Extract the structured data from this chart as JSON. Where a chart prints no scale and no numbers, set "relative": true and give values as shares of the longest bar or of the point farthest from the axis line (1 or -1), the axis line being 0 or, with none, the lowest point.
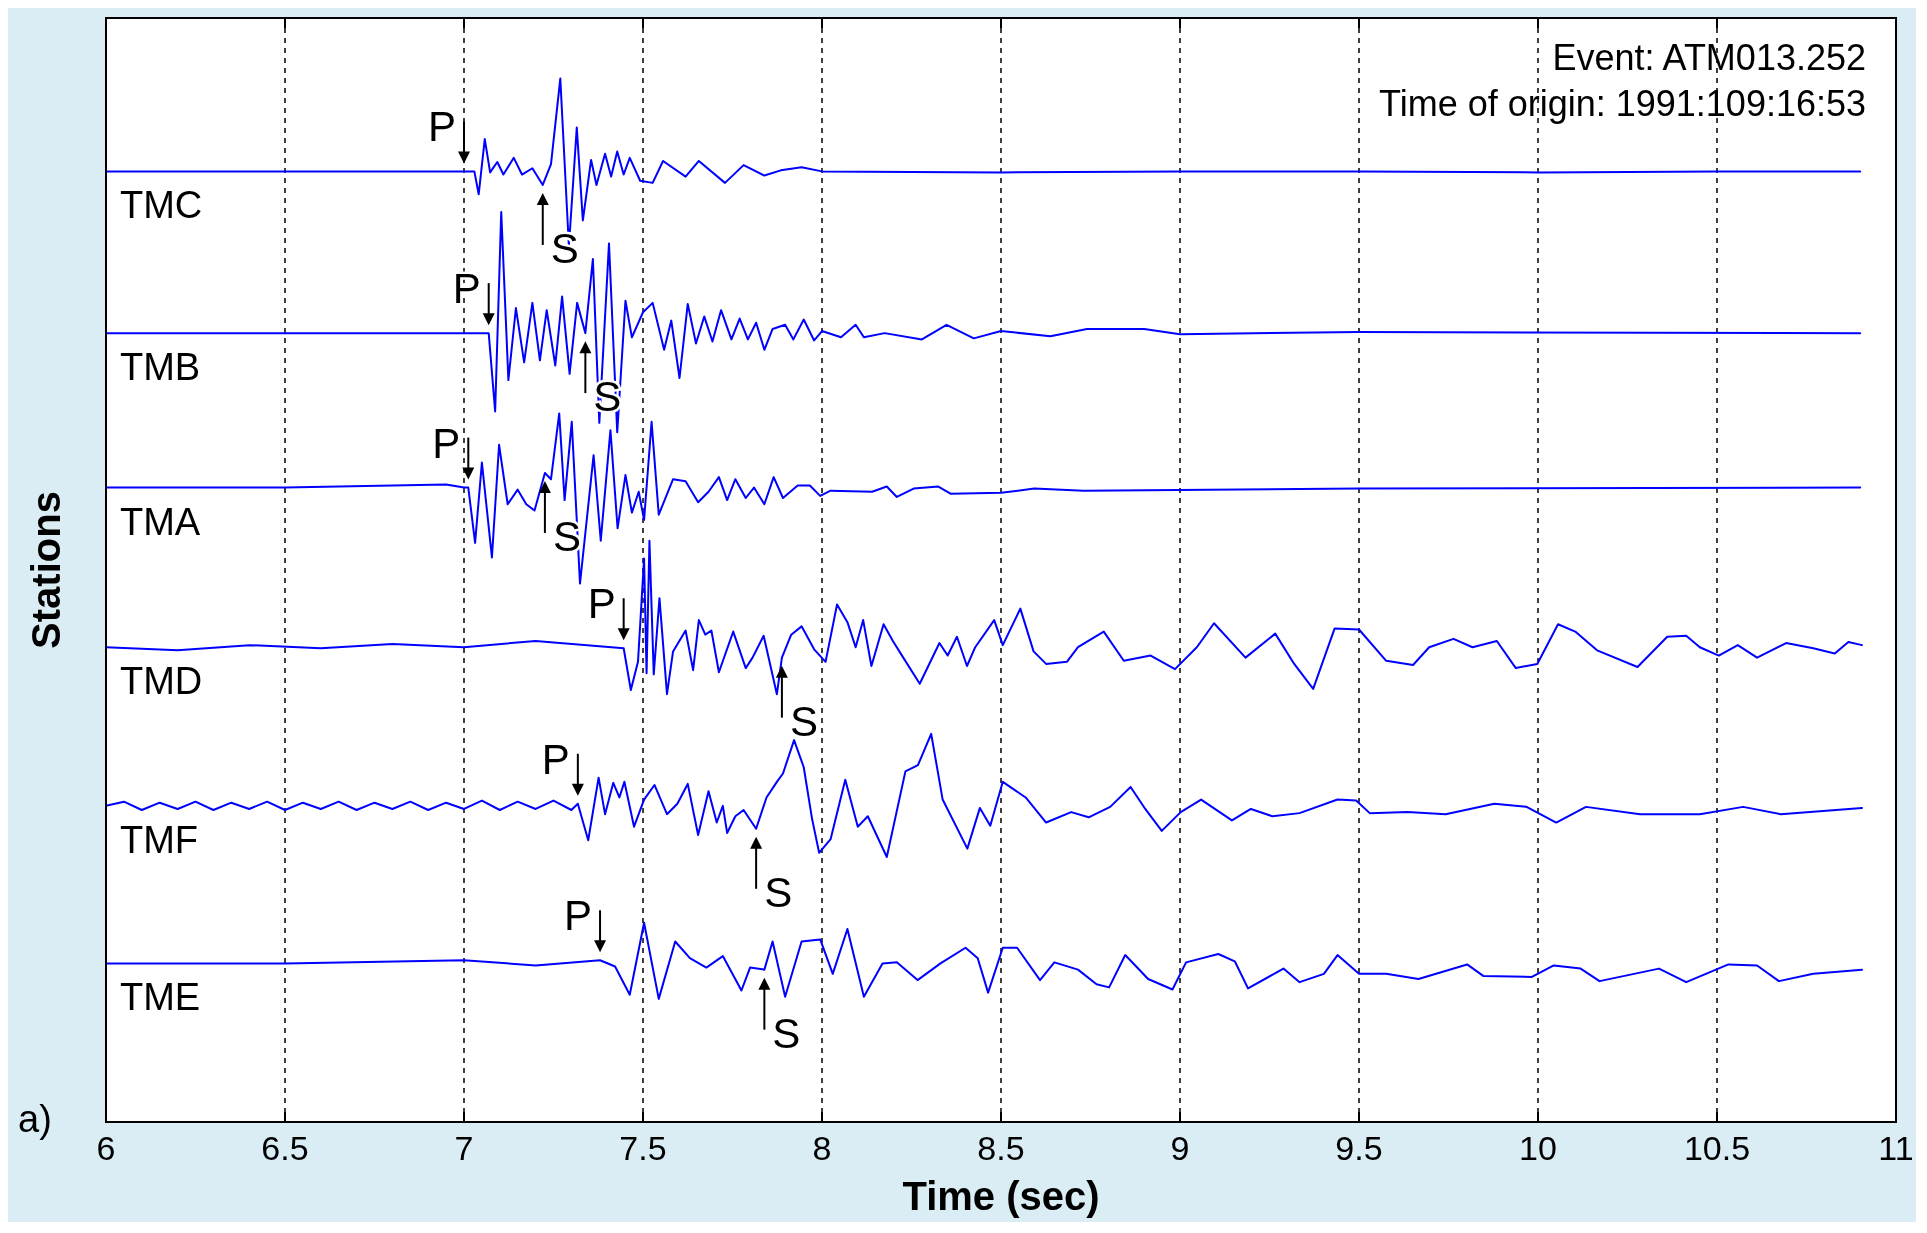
{
  "chart_data": {
    "type": "line",
    "xlabel": "Time (sec)",
    "ylabel": "Stations",
    "relative": true,
    "xlim": [
      6,
      11
    ],
    "xticks": [
      6,
      6.5,
      7,
      7.5,
      8,
      8.5,
      9,
      9.5,
      10,
      10.5,
      11
    ],
    "tick_labels": "x",
    "grid": "x",
    "legend": false,
    "marker": "none",
    "line_style": "solid",
    "series": [
      {
        "name": "TMC",
        "color": "#0000ff",
        "x": [
          6.0,
          6.5,
          7.0,
          7.029,
          7.041,
          7.058,
          7.073,
          7.093,
          7.11,
          7.139,
          7.162,
          7.191,
          7.22,
          7.243,
          7.269,
          7.293,
          7.315,
          7.332,
          7.355,
          7.37,
          7.394,
          7.411,
          7.428,
          7.446,
          7.463,
          7.492,
          7.527,
          7.556,
          7.619,
          7.656,
          7.729,
          7.781,
          7.839,
          7.885,
          7.943,
          8.0,
          8.5,
          9.0,
          9.5,
          10.0,
          10.5,
          10.9
        ],
        "values": [
          0.911,
          0.911,
          0.911,
          0.911,
          0.889,
          0.942,
          0.91,
          0.92,
          0.908,
          0.924,
          0.908,
          0.914,
          0.898,
          0.918,
          1.0,
          0.839,
          0.953,
          0.864,
          0.922,
          0.898,
          0.928,
          0.906,
          0.93,
          0.908,
          0.924,
          0.902,
          0.9,
          0.921,
          0.906,
          0.921,
          0.9,
          0.917,
          0.907,
          0.912,
          0.915,
          0.911,
          0.91,
          0.911,
          0.911,
          0.91,
          0.911,
          0.911
        ]
      },
      {
        "name": "TMB",
        "color": "#0000ff",
        "x": [
          6.0,
          7.0,
          7.069,
          7.087,
          7.104,
          7.124,
          7.145,
          7.168,
          7.191,
          7.212,
          7.231,
          7.255,
          7.274,
          7.295,
          7.316,
          7.339,
          7.36,
          7.378,
          7.405,
          7.428,
          7.451,
          7.469,
          7.5,
          7.527,
          7.559,
          7.579,
          7.602,
          7.625,
          7.648,
          7.671,
          7.694,
          7.718,
          7.747,
          7.77,
          7.793,
          7.816,
          7.839,
          7.862,
          7.897,
          7.92,
          7.949,
          7.978,
          8.0,
          8.053,
          8.094,
          8.117,
          8.175,
          8.279,
          8.348,
          8.424,
          8.5,
          8.638,
          8.74,
          8.9,
          9.0,
          9.5,
          10.9
        ],
        "values": [
          0.756,
          0.756,
          0.756,
          0.681,
          0.872,
          0.711,
          0.78,
          0.728,
          0.785,
          0.73,
          0.778,
          0.725,
          0.791,
          0.717,
          0.785,
          0.756,
          0.827,
          0.67,
          0.842,
          0.661,
          0.787,
          0.752,
          0.776,
          0.785,
          0.74,
          0.768,
          0.713,
          0.784,
          0.746,
          0.772,
          0.748,
          0.778,
          0.75,
          0.77,
          0.75,
          0.766,
          0.74,
          0.76,
          0.764,
          0.75,
          0.769,
          0.749,
          0.758,
          0.752,
          0.764,
          0.752,
          0.756,
          0.75,
          0.764,
          0.751,
          0.758,
          0.753,
          0.76,
          0.76,
          0.755,
          0.757,
          0.756
        ]
      },
      {
        "name": "TMA",
        "color": "#0000ff",
        "x": [
          6.0,
          6.5,
          6.95,
          7.0,
          7.012,
          7.031,
          7.05,
          7.078,
          7.098,
          7.122,
          7.15,
          7.174,
          7.197,
          7.226,
          7.243,
          7.266,
          7.281,
          7.301,
          7.324,
          7.362,
          7.382,
          7.409,
          7.429,
          7.451,
          7.469,
          7.488,
          7.503,
          7.524,
          7.544,
          7.584,
          7.619,
          7.654,
          7.683,
          7.712,
          7.735,
          7.758,
          7.787,
          7.81,
          7.839,
          7.865,
          7.891,
          7.932,
          7.966,
          7.995,
          8.024,
          8.14,
          8.181,
          8.209,
          8.256,
          8.325,
          8.36,
          8.5,
          8.593,
          8.73,
          9.5,
          10.9
        ],
        "values": [
          0.608,
          0.608,
          0.611,
          0.608,
          0.608,
          0.555,
          0.632,
          0.541,
          0.649,
          0.592,
          0.606,
          0.592,
          0.586,
          0.622,
          0.616,
          0.679,
          0.596,
          0.671,
          0.516,
          0.639,
          0.557,
          0.663,
          0.569,
          0.62,
          0.584,
          0.604,
          0.577,
          0.671,
          0.582,
          0.616,
          0.614,
          0.594,
          0.604,
          0.618,
          0.596,
          0.616,
          0.598,
          0.608,
          0.592,
          0.618,
          0.598,
          0.61,
          0.61,
          0.6,
          0.605,
          0.604,
          0.609,
          0.599,
          0.607,
          0.609,
          0.602,
          0.603,
          0.607,
          0.605,
          0.607,
          0.608
        ]
      },
      {
        "name": "TMD",
        "color": "#0000ff",
        "x": [
          6.0,
          6.2,
          6.4,
          6.6,
          6.8,
          7.0,
          7.2,
          7.446,
          7.466,
          7.486,
          7.503,
          7.51,
          7.518,
          7.53,
          7.546,
          7.567,
          7.584,
          7.619,
          7.64,
          7.656,
          7.674,
          7.691,
          7.712,
          7.752,
          7.787,
          7.806,
          7.837,
          7.874,
          7.888,
          7.914,
          7.943,
          7.978,
          8.01,
          8.042,
          8.071,
          8.094,
          8.115,
          8.138,
          8.172,
          8.198,
          8.227,
          8.273,
          8.328,
          8.351,
          8.377,
          8.405,
          8.428,
          8.481,
          8.505,
          8.554,
          8.591,
          8.626,
          8.684,
          8.715,
          8.787,
          8.843,
          8.918,
          8.986,
          9.047,
          9.095,
          9.183,
          9.266,
          9.319,
          9.372,
          9.432,
          9.5,
          9.576,
          9.651,
          9.696,
          9.764,
          9.817,
          9.885,
          9.938,
          9.998,
          10.056,
          10.104,
          10.165,
          10.278,
          10.361,
          10.414,
          10.452,
          10.505,
          10.558,
          10.612,
          10.693,
          10.769,
          10.829,
          10.867,
          10.905
        ],
        "values": [
          0.455,
          0.452,
          0.457,
          0.454,
          0.458,
          0.455,
          0.461,
          0.454,
          0.414,
          0.441,
          0.54,
          0.43,
          0.557,
          0.429,
          0.502,
          0.41,
          0.451,
          0.471,
          0.433,
          0.481,
          0.467,
          0.471,
          0.431,
          0.47,
          0.435,
          0.445,
          0.466,
          0.41,
          0.445,
          0.467,
          0.475,
          0.453,
          0.441,
          0.496,
          0.479,
          0.455,
          0.481,
          0.437,
          0.477,
          0.461,
          0.445,
          0.42,
          0.459,
          0.447,
          0.465,
          0.437,
          0.455,
          0.481,
          0.457,
          0.492,
          0.451,
          0.439,
          0.441,
          0.455,
          0.47,
          0.442,
          0.447,
          0.434,
          0.455,
          0.478,
          0.445,
          0.468,
          0.439,
          0.415,
          0.473,
          0.472,
          0.442,
          0.438,
          0.455,
          0.463,
          0.455,
          0.461,
          0.435,
          0.439,
          0.477,
          0.47,
          0.452,
          0.436,
          0.465,
          0.466,
          0.455,
          0.447,
          0.457,
          0.445,
          0.459,
          0.454,
          0.449,
          0.46,
          0.457
        ]
      },
      {
        "name": "TMF",
        "color": "#0000ff",
        "x": [
          6.0,
          6.05,
          6.1,
          6.15,
          6.2,
          6.25,
          6.3,
          6.35,
          6.4,
          6.45,
          6.5,
          6.55,
          6.6,
          6.65,
          6.7,
          6.75,
          6.8,
          6.85,
          6.9,
          6.95,
          7.0,
          7.05,
          7.1,
          7.15,
          7.2,
          7.25,
          7.3,
          7.318,
          7.347,
          7.376,
          7.394,
          7.417,
          7.434,
          7.448,
          7.475,
          7.503,
          7.532,
          7.567,
          7.596,
          7.625,
          7.654,
          7.683,
          7.706,
          7.723,
          7.735,
          7.758,
          7.781,
          7.816,
          7.845,
          7.874,
          7.891,
          7.922,
          7.949,
          7.972,
          7.992,
          8.024,
          8.065,
          8.1,
          8.128,
          8.181,
          8.233,
          8.268,
          8.305,
          8.337,
          8.406,
          8.441,
          8.47,
          8.505,
          8.569,
          8.626,
          8.696,
          8.745,
          8.805,
          8.862,
          8.903,
          8.949,
          9.002,
          9.059,
          9.145,
          9.198,
          9.258,
          9.334,
          9.44,
          9.492,
          9.53,
          9.636,
          9.742,
          9.878,
          9.968,
          10.051,
          10.134,
          10.285,
          10.452,
          10.573,
          10.678,
          10.905
        ],
        "values": [
          0.303,
          0.307,
          0.299,
          0.306,
          0.3,
          0.307,
          0.299,
          0.306,
          0.3,
          0.307,
          0.299,
          0.306,
          0.3,
          0.307,
          0.299,
          0.306,
          0.3,
          0.307,
          0.299,
          0.306,
          0.3,
          0.308,
          0.299,
          0.307,
          0.3,
          0.308,
          0.299,
          0.305,
          0.27,
          0.33,
          0.295,
          0.325,
          0.311,
          0.326,
          0.283,
          0.309,
          0.323,
          0.295,
          0.305,
          0.324,
          0.275,
          0.317,
          0.287,
          0.303,
          0.277,
          0.293,
          0.299,
          0.281,
          0.311,
          0.326,
          0.334,
          0.366,
          0.34,
          0.291,
          0.258,
          0.271,
          0.328,
          0.283,
          0.293,
          0.254,
          0.336,
          0.342,
          0.372,
          0.309,
          0.262,
          0.301,
          0.284,
          0.326,
          0.311,
          0.287,
          0.297,
          0.292,
          0.302,
          0.321,
          0.3,
          0.279,
          0.297,
          0.309,
          0.289,
          0.3,
          0.293,
          0.296,
          0.309,
          0.308,
          0.296,
          0.297,
          0.295,
          0.305,
          0.302,
          0.287,
          0.302,
          0.295,
          0.295,
          0.302,
          0.295,
          0.301
        ]
      },
      {
        "name": "TME",
        "color": "#0000ff",
        "x": [
          6.0,
          6.5,
          7.0,
          7.2,
          7.38,
          7.422,
          7.463,
          7.503,
          7.544,
          7.59,
          7.631,
          7.677,
          7.723,
          7.775,
          7.799,
          7.839,
          7.862,
          7.897,
          7.943,
          7.995,
          8.03,
          8.071,
          8.117,
          8.169,
          8.209,
          8.267,
          8.331,
          8.401,
          8.435,
          8.464,
          8.505,
          8.545,
          8.609,
          8.649,
          8.715,
          8.767,
          8.802,
          8.847,
          8.911,
          8.979,
          9.017,
          9.107,
          9.153,
          9.19,
          9.289,
          9.334,
          9.402,
          9.44,
          9.5,
          9.576,
          9.666,
          9.802,
          9.847,
          9.983,
          10.044,
          10.119,
          10.172,
          10.338,
          10.414,
          10.532,
          10.612,
          10.673,
          10.769,
          10.905
        ],
        "values": [
          0.152,
          0.152,
          0.155,
          0.15,
          0.155,
          0.149,
          0.122,
          0.191,
          0.118,
          0.173,
          0.157,
          0.148,
          0.159,
          0.126,
          0.148,
          0.146,
          0.173,
          0.12,
          0.173,
          0.175,
          0.142,
          0.185,
          0.12,
          0.152,
          0.153,
          0.136,
          0.152,
          0.167,
          0.157,
          0.124,
          0.167,
          0.167,
          0.136,
          0.153,
          0.146,
          0.132,
          0.129,
          0.16,
          0.137,
          0.127,
          0.153,
          0.161,
          0.154,
          0.128,
          0.147,
          0.134,
          0.142,
          0.16,
          0.142,
          0.142,
          0.137,
          0.151,
          0.14,
          0.139,
          0.15,
          0.147,
          0.135,
          0.147,
          0.134,
          0.151,
          0.15,
          0.135,
          0.142,
          0.146
        ]
      }
    ],
    "annotations": [
      {
        "text": "P",
        "x": 7.0,
        "y": 0.911
      },
      {
        "text": "S",
        "x": 7.22,
        "y": 0.898
      },
      {
        "text": "P",
        "x": 7.069,
        "y": 0.756
      },
      {
        "text": "S",
        "x": 7.339,
        "y": 0.756
      },
      {
        "text": "P",
        "x": 7.012,
        "y": 0.608
      },
      {
        "text": "S",
        "x": 7.226,
        "y": 0.622
      },
      {
        "text": "P",
        "x": 7.446,
        "y": 0.454
      },
      {
        "text": "S",
        "x": 7.888,
        "y": 0.445
      },
      {
        "text": "P",
        "x": 7.318,
        "y": 0.305
      },
      {
        "text": "S",
        "x": 7.816,
        "y": 0.281
      },
      {
        "text": "P",
        "x": 7.38,
        "y": 0.155
      },
      {
        "text": "S",
        "x": 7.839,
        "y": 0.146
      },
      "Event: ATM013.252",
      "Time of origin: 1991:109:16:53",
      "a)"
    ]
  }
}
